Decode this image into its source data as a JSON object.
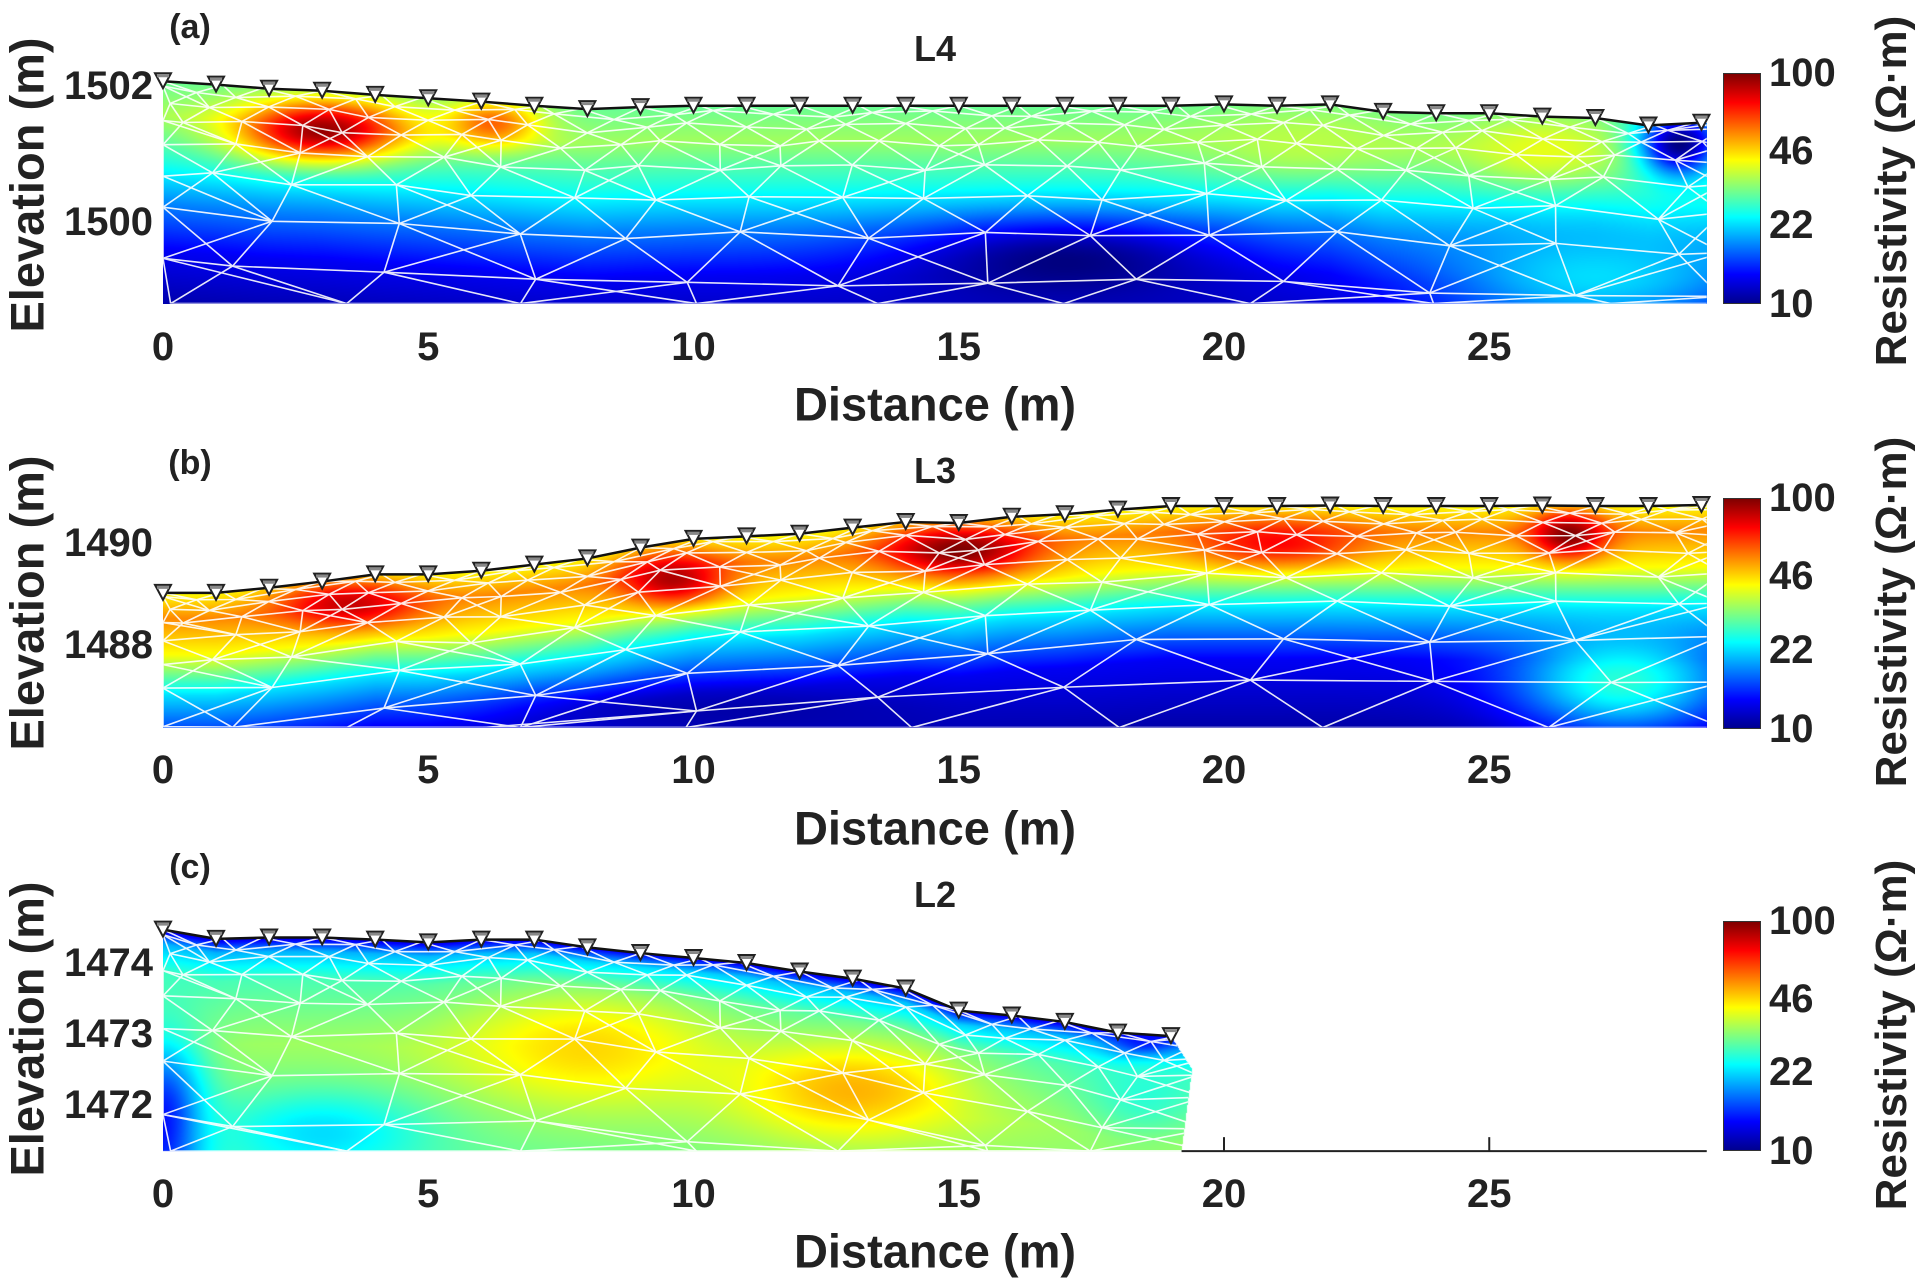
{
  "chart_data": [
    {
      "type": "heatmap",
      "panel_label": "(a)",
      "title": "L4",
      "xlabel": "Distance (m)",
      "ylabel": "Elevation (m)",
      "colorbar_label": "Resistivity (Ω·m)",
      "colormap": "jet",
      "color_scale": "log",
      "color_range": [
        10,
        100
      ],
      "colorbar_ticks": [
        "10",
        "22",
        "46",
        "100"
      ],
      "xlim": [
        0,
        29.1
      ],
      "ylim": [
        1498.8,
        1502.2
      ],
      "x_ticks": [
        "0",
        "5",
        "10",
        "15",
        "20",
        "25"
      ],
      "y_ticks": [
        "1500",
        "1502"
      ],
      "electrodes": {
        "distance": [
          0,
          1,
          2,
          3,
          4,
          5,
          6,
          7,
          8,
          9,
          10,
          11,
          12,
          13,
          14,
          15,
          16,
          17,
          18,
          19,
          20,
          21,
          22,
          23,
          24,
          25,
          26,
          27,
          28,
          29
        ],
        "elevation": [
          1502.07,
          1502.02,
          1501.96,
          1501.93,
          1501.87,
          1501.82,
          1501.77,
          1501.71,
          1501.66,
          1501.69,
          1501.71,
          1501.71,
          1501.71,
          1501.71,
          1501.71,
          1501.71,
          1501.71,
          1501.71,
          1501.71,
          1501.71,
          1501.73,
          1501.71,
          1501.73,
          1501.62,
          1501.6,
          1501.6,
          1501.55,
          1501.53,
          1501.42,
          1501.46
        ]
      },
      "resistivity_model": {
        "background_by_depth": [
          [
            0,
            30
          ],
          [
            0.5,
            34
          ],
          [
            1.2,
            25
          ],
          [
            1.8,
            18
          ],
          [
            2.5,
            13
          ],
          [
            3.3,
            11
          ]
        ],
        "anomalies": [
          {
            "distance": 3,
            "elevation": 1501.35,
            "resistivity": 95,
            "width": 1.6,
            "height": 0.45
          },
          {
            "distance": 6.2,
            "elevation": 1501.45,
            "resistivity": 60,
            "width": 0.9,
            "height": 0.35
          },
          {
            "distance": 21.5,
            "elevation": 1501.15,
            "resistivity": 36,
            "width": 2.0,
            "height": 0.5
          },
          {
            "distance": 26,
            "elevation": 1501.05,
            "resistivity": 40,
            "width": 1.5,
            "height": 0.5
          },
          {
            "distance": 28.6,
            "elevation": 1501.15,
            "resistivity": 10,
            "width": 0.8,
            "height": 0.5
          },
          {
            "distance": 17,
            "elevation": 1499.4,
            "resistivity": 10,
            "width": 3,
            "height": 0.6
          },
          {
            "distance": 27,
            "elevation": 1499.2,
            "resistivity": 22,
            "width": 3,
            "height": 0.8
          }
        ]
      }
    },
    {
      "type": "heatmap",
      "panel_label": "(b)",
      "title": "L3",
      "xlabel": "Distance (m)",
      "ylabel": "Elevation (m)",
      "colorbar_label": "Resistivity (Ω·m)",
      "colormap": "jet",
      "color_scale": "log",
      "color_range": [
        10,
        100
      ],
      "colorbar_ticks": [
        "10",
        "22",
        "46",
        "100"
      ],
      "xlim": [
        0,
        29.1
      ],
      "ylim": [
        1486.4,
        1490.9
      ],
      "x_ticks": [
        "0",
        "5",
        "10",
        "15",
        "20",
        "25"
      ],
      "y_ticks": [
        "1488",
        "1490"
      ],
      "electrodes": {
        "distance": [
          0,
          1,
          2,
          3,
          4,
          5,
          6,
          7,
          8,
          9,
          10,
          11,
          12,
          13,
          14,
          15,
          16,
          17,
          18,
          19,
          20,
          21,
          22,
          23,
          24,
          25,
          26,
          27,
          28,
          29
        ],
        "elevation": [
          1489.02,
          1489.02,
          1489.12,
          1489.24,
          1489.38,
          1489.38,
          1489.45,
          1489.57,
          1489.69,
          1489.9,
          1490.07,
          1490.12,
          1490.17,
          1490.29,
          1490.4,
          1490.38,
          1490.5,
          1490.55,
          1490.64,
          1490.71,
          1490.71,
          1490.71,
          1490.72,
          1490.71,
          1490.71,
          1490.71,
          1490.72,
          1490.71,
          1490.71,
          1490.73
        ]
      },
      "resistivity_model": {
        "background_by_depth": [
          [
            0,
            42
          ],
          [
            0.5,
            55
          ],
          [
            1.2,
            42
          ],
          [
            2,
            22
          ],
          [
            3,
            13
          ],
          [
            4.3,
            11
          ]
        ],
        "anomalies": [
          {
            "distance": 3.5,
            "elevation": 1488.8,
            "resistivity": 85,
            "width": 1.3,
            "height": 0.45
          },
          {
            "distance": 9.6,
            "elevation": 1489.3,
            "resistivity": 90,
            "width": 1.0,
            "height": 0.5
          },
          {
            "distance": 15,
            "elevation": 1489.85,
            "resistivity": 100,
            "width": 1.4,
            "height": 0.5
          },
          {
            "distance": 21,
            "elevation": 1490.0,
            "resistivity": 75,
            "width": 1.6,
            "height": 0.45
          },
          {
            "distance": 26.5,
            "elevation": 1490.15,
            "resistivity": 100,
            "width": 0.7,
            "height": 0.45
          },
          {
            "distance": 27.5,
            "elevation": 1487.3,
            "resistivity": 26,
            "width": 2,
            "height": 1.0
          },
          {
            "distance": 11,
            "elevation": 1486.7,
            "resistivity": 11,
            "width": 4,
            "height": 0.5
          }
        ]
      }
    },
    {
      "type": "heatmap",
      "panel_label": "(c)",
      "title": "L2",
      "xlabel": "Distance (m)",
      "ylabel": "Elevation (m)",
      "colorbar_label": "Resistivity (Ω·m)",
      "colormap": "jet",
      "color_scale": "log",
      "color_range": [
        10,
        100
      ],
      "colorbar_ticks": [
        "10",
        "22",
        "46",
        "100"
      ],
      "xlim": [
        0,
        29.1
      ],
      "ylim": [
        1471.35,
        1474.6
      ],
      "x_ticks": [
        "0",
        "5",
        "10",
        "15",
        "20",
        "25"
      ],
      "y_ticks": [
        "1472",
        "1473",
        "1474"
      ],
      "electrodes": {
        "distance": [
          0,
          1,
          2,
          3,
          4,
          5,
          6,
          7,
          8,
          9,
          10,
          11,
          12,
          13,
          14,
          15,
          16,
          17,
          18,
          19
        ],
        "elevation": [
          1474.47,
          1474.34,
          1474.36,
          1474.36,
          1474.33,
          1474.29,
          1474.33,
          1474.33,
          1474.22,
          1474.14,
          1474.07,
          1474.0,
          1473.88,
          1473.78,
          1473.64,
          1473.33,
          1473.26,
          1473.17,
          1473.02,
          1472.97
        ]
      },
      "section_boundary": [
        [
          19.0,
          1472.97
        ],
        [
          19.4,
          1472.5
        ],
        [
          19.2,
          1471.35
        ]
      ],
      "resistivity_model": {
        "background_by_depth": [
          [
            0,
            12
          ],
          [
            0.2,
            20
          ],
          [
            0.6,
            28
          ],
          [
            1.5,
            34
          ],
          [
            3.2,
            30
          ]
        ],
        "anomalies": [
          {
            "distance": 8,
            "elevation": 1472.8,
            "resistivity": 46,
            "width": 2.5,
            "height": 0.8
          },
          {
            "distance": 13,
            "elevation": 1472.2,
            "resistivity": 50,
            "width": 2.2,
            "height": 0.7
          },
          {
            "distance": 0,
            "elevation": 1471.7,
            "resistivity": 13,
            "width": 0.8,
            "height": 1.2
          },
          {
            "distance": 3,
            "elevation": 1471.6,
            "resistivity": 22,
            "width": 2,
            "height": 0.6
          },
          {
            "distance": 18.5,
            "elevation": 1472.85,
            "resistivity": 11,
            "width": 0.6,
            "height": 0.2
          },
          {
            "distance": 18.5,
            "elevation": 1472.2,
            "resistivity": 26,
            "width": 1.0,
            "height": 0.6
          }
        ]
      }
    }
  ]
}
